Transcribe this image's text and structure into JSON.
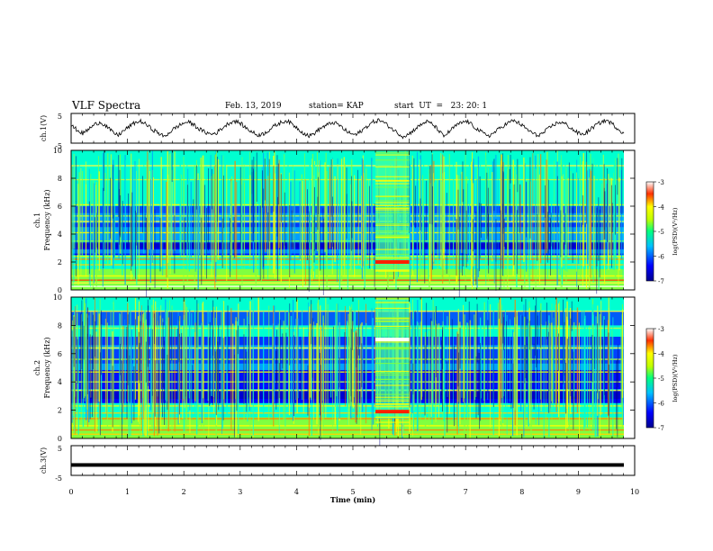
{
  "header": {
    "title": "VLF Spectra",
    "date": "Feb. 13, 2019",
    "station": "station= KAP",
    "start": "start  UT  =   23: 20: 1"
  },
  "chart_data": [
    {
      "type": "line",
      "panel": "ch1-waveform",
      "ylabel": "ch.1(V)",
      "ylim": [
        -5,
        5
      ],
      "yticks": [
        "5",
        "-5"
      ],
      "xlim": [
        0,
        10
      ],
      "series": [
        {
          "values": [
            0.9,
            -0.5,
            -1.8,
            -0.3,
            1.2,
            2.1,
            0.8,
            -1.1,
            -2.4,
            -0.9,
            0.6,
            1.9,
            2.4,
            1.1,
            -0.4,
            -1.6,
            -2.9,
            -1.2,
            0.3,
            1.4,
            2.2,
            1.3,
            -0.2,
            -1.3,
            -2.0,
            -1.5,
            0.1,
            1.6,
            2.5,
            1.8,
            0.2,
            -1.1,
            -2.3,
            -1.9,
            -0.6,
            0.8,
            1.9,
            2.6,
            1.4,
            -0.1,
            -1.7,
            -2.6,
            -1.4,
            0.2,
            1.1,
            2.0,
            1.2,
            -0.5,
            -1.8,
            -2.2,
            -0.7,
            0.9,
            2.2,
            2.8,
            1.6,
            0.1,
            -1.4,
            -2.7,
            -2.0,
            -0.4,
            1.0,
            2.3,
            1.5,
            -0.3,
            -2.8,
            -1.1,
            0.7,
            1.8,
            2.4,
            1.0,
            -0.6,
            -1.9,
            -2.5,
            -1.0,
            0.5,
            1.7,
            2.6,
            1.7,
            0.2,
            -1.2,
            -2.4,
            -1.8,
            -0.2,
            1.3,
            2.1,
            1.4,
            -0.1,
            -1.5,
            -2.1,
            -0.8,
            0.8,
            2.0,
            2.7,
            1.5,
            -0.2,
            -1.6
          ]
        }
      ]
    },
    {
      "type": "heatmap",
      "panel": "ch1-spectrogram",
      "ylabel_line1": "ch.1",
      "ylabel_line2": "Frequency (kHz)",
      "ylim": [
        0,
        10
      ],
      "yticks": [
        "0",
        "2",
        "4",
        "6",
        "8",
        "10"
      ],
      "colorbar_label": "log(PSD)(V²/Hz)",
      "colorbar_range": [
        -7,
        -3
      ],
      "colorbar_ticks": [
        "-3",
        "-4",
        "-5",
        "-6",
        "-7"
      ]
    },
    {
      "type": "heatmap",
      "panel": "ch2-spectrogram",
      "ylabel_line1": "ch.2",
      "ylabel_line2": "Frequency (kHz)",
      "ylim": [
        0,
        10
      ],
      "yticks": [
        "0",
        "2",
        "4",
        "6",
        "8",
        "10"
      ],
      "colorbar_label": "log(PSD)(V²/Hz)",
      "colorbar_range": [
        -7,
        -3
      ],
      "colorbar_ticks": [
        "-3",
        "-4",
        "-5",
        "-6",
        "-7"
      ]
    },
    {
      "type": "line",
      "panel": "ch3-waveform",
      "ylabel": "ch.3(V)",
      "ylim": [
        -5,
        5
      ],
      "yticks": [
        "5",
        "-5"
      ],
      "constant_value": -1.5
    }
  ],
  "xaxis": {
    "label": "Time  (min)",
    "ticks": [
      "0",
      "1",
      "2",
      "3",
      "4",
      "5",
      "6",
      "7",
      "8",
      "9",
      "10"
    ],
    "range": [
      0,
      10
    ]
  },
  "colors": {
    "cmap": [
      "#00008f",
      "#0000ff",
      "#00a0ff",
      "#00ffd0",
      "#80ff40",
      "#ffff00",
      "#ff8000",
      "#ff0000",
      "#b00000"
    ]
  }
}
